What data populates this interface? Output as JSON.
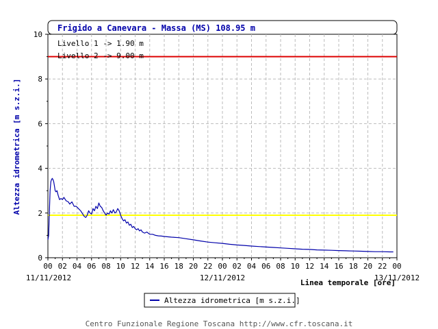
{
  "chart_data": {
    "type": "line",
    "title": "Frigido a Canevara - Massa (MS) 108.95 m",
    "ylabel": "Altezza idrometrica [m s.z.i.]",
    "xlabel": "Linea temporale [ore]",
    "ylim": [
      0,
      10
    ],
    "yticks": [
      0,
      2,
      4,
      6,
      8,
      10
    ],
    "xlim_hours": [
      0,
      48
    ],
    "xtick_labels": [
      "00",
      "02",
      "04",
      "06",
      "08",
      "10",
      "12",
      "14",
      "16",
      "18",
      "20",
      "22",
      "00",
      "02",
      "04",
      "06",
      "08",
      "10",
      "12",
      "14",
      "16",
      "18",
      "20",
      "22",
      "00"
    ],
    "date_labels": [
      "11/11/2012",
      "12/11/2012",
      "13/11/2012"
    ],
    "grid": true,
    "thresholds": [
      {
        "label": "Livello 1 -> 1.90 m",
        "value": 1.9,
        "color": "#ffff00"
      },
      {
        "label": "Livello 2 -> 9.00 m",
        "value": 9.0,
        "color": "#dd0000"
      }
    ],
    "series": [
      {
        "name": "Altezza idrometrica [m s.z.i.]",
        "color": "#0000aa",
        "x": [
          0.0,
          0.1,
          0.2,
          0.3,
          0.4,
          0.5,
          0.6,
          0.7,
          0.8,
          0.9,
          1.0,
          1.1,
          1.25,
          1.4,
          1.6,
          1.8,
          2.0,
          2.2,
          2.5,
          2.8,
          3.0,
          3.3,
          3.6,
          3.9,
          4.2,
          4.5,
          4.8,
          5.0,
          5.2,
          5.4,
          5.6,
          5.8,
          6.0,
          6.2,
          6.4,
          6.6,
          6.8,
          7.0,
          7.2,
          7.4,
          7.6,
          7.8,
          8.0,
          8.2,
          8.4,
          8.6,
          8.8,
          9.0,
          9.2,
          9.4,
          9.6,
          9.8,
          10.0,
          10.2,
          10.4,
          10.6,
          10.8,
          11.0,
          11.2,
          11.4,
          11.6,
          11.8,
          12.0,
          12.2,
          12.4,
          12.6,
          12.8,
          13.0,
          13.3,
          13.6,
          14.0,
          14.4,
          14.8,
          15.2,
          15.6,
          16.0,
          17.0,
          18.0,
          19.0,
          20.0,
          21.0,
          22.0,
          23.0,
          24.0,
          25.0,
          26.0,
          27.0,
          28.0,
          29.0,
          30.0,
          31.0,
          32.0,
          33.0,
          34.0,
          35.0,
          36.0,
          37.0,
          38.0,
          39.0,
          40.0,
          41.0,
          42.0,
          43.0,
          44.0,
          45.0,
          46.0,
          47.0,
          47.5
        ],
        "values": [
          0.8,
          1.0,
          2.0,
          3.0,
          3.4,
          3.5,
          3.55,
          3.5,
          3.4,
          3.2,
          3.0,
          2.95,
          3.0,
          2.8,
          2.6,
          2.65,
          2.6,
          2.7,
          2.55,
          2.5,
          2.4,
          2.5,
          2.3,
          2.3,
          2.2,
          2.1,
          1.95,
          1.85,
          1.8,
          1.9,
          2.1,
          2.0,
          1.95,
          2.2,
          2.1,
          2.3,
          2.2,
          2.45,
          2.3,
          2.25,
          2.1,
          2.0,
          1.9,
          2.0,
          1.95,
          2.1,
          2.0,
          2.15,
          2.0,
          2.05,
          2.2,
          2.1,
          1.9,
          1.75,
          1.65,
          1.7,
          1.55,
          1.6,
          1.45,
          1.5,
          1.35,
          1.4,
          1.3,
          1.25,
          1.3,
          1.2,
          1.25,
          1.15,
          1.1,
          1.15,
          1.05,
          1.05,
          1.0,
          0.98,
          0.97,
          0.95,
          0.92,
          0.9,
          0.85,
          0.8,
          0.75,
          0.7,
          0.67,
          0.64,
          0.6,
          0.57,
          0.55,
          0.52,
          0.5,
          0.48,
          0.46,
          0.44,
          0.42,
          0.4,
          0.38,
          0.37,
          0.35,
          0.34,
          0.33,
          0.32,
          0.31,
          0.3,
          0.29,
          0.28,
          0.27,
          0.27,
          0.26,
          0.26
        ]
      }
    ]
  },
  "footer": "Centro Funzionale Regione Toscana http://www.cfr.toscana.it"
}
